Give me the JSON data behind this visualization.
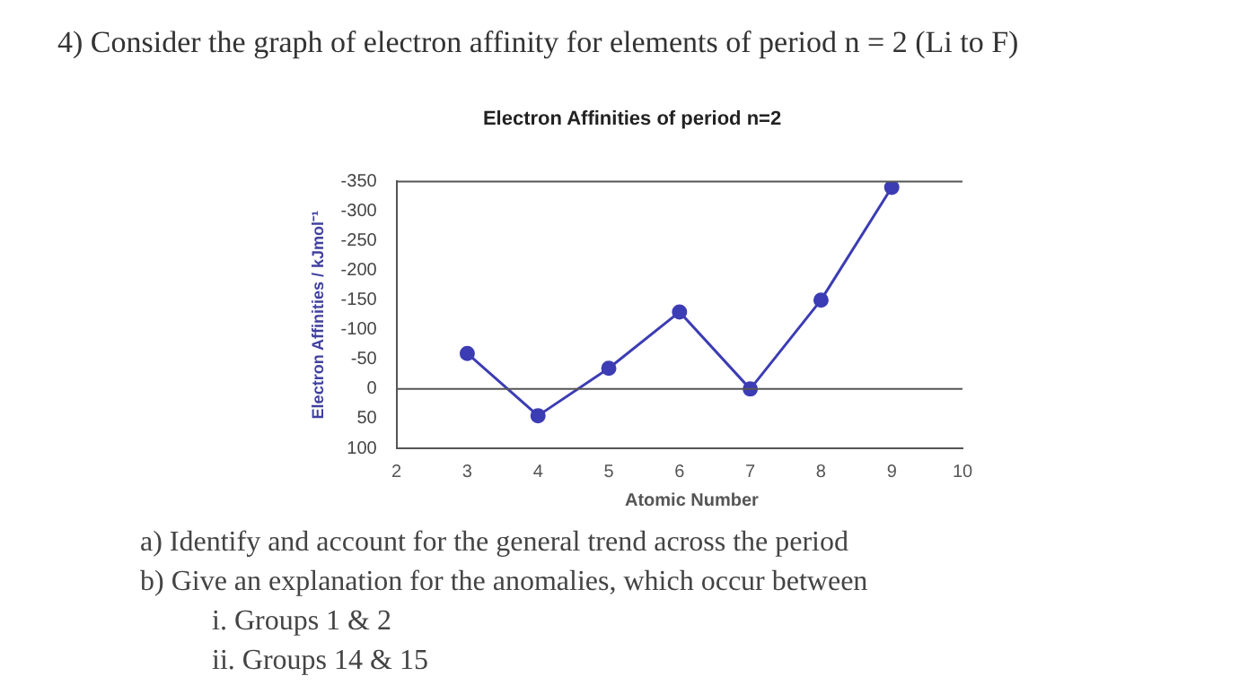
{
  "chart_data": {
    "type": "line",
    "title": "Electron Affinities of period n=2",
    "xlabel": "Atomic Number",
    "ylabel": "Electron Affinities / kJmol⁻¹",
    "x": [
      3,
      4,
      5,
      6,
      7,
      8,
      9
    ],
    "series": [
      {
        "color": "#3c3cb4",
        "values": [
          -60,
          45,
          -35,
          -130,
          0,
          -150,
          -340
        ]
      }
    ],
    "xlim": [
      2,
      10
    ],
    "xticks": [
      2,
      3,
      4,
      5,
      6,
      7,
      8,
      9,
      10
    ],
    "ylim": [
      100,
      -350
    ],
    "yticks": [
      100,
      50,
      0,
      -50,
      -100,
      -150,
      -200,
      -250,
      -300,
      -350
    ],
    "marker": "circle",
    "grid": false,
    "legend": false,
    "ref_lines": [
      {
        "axis": "y",
        "value": 0,
        "color": "#555555"
      }
    ],
    "annotations": [
      "4)  Consider the graph of electron affinity for elements of period n = 2 (Li to F)",
      "a)  Identify and account for the general trend across the period",
      "b)  Give an explanation for the anomalies, which occur between",
      "i.  Groups 1 & 2",
      "ii.  Groups 14 & 15"
    ]
  }
}
